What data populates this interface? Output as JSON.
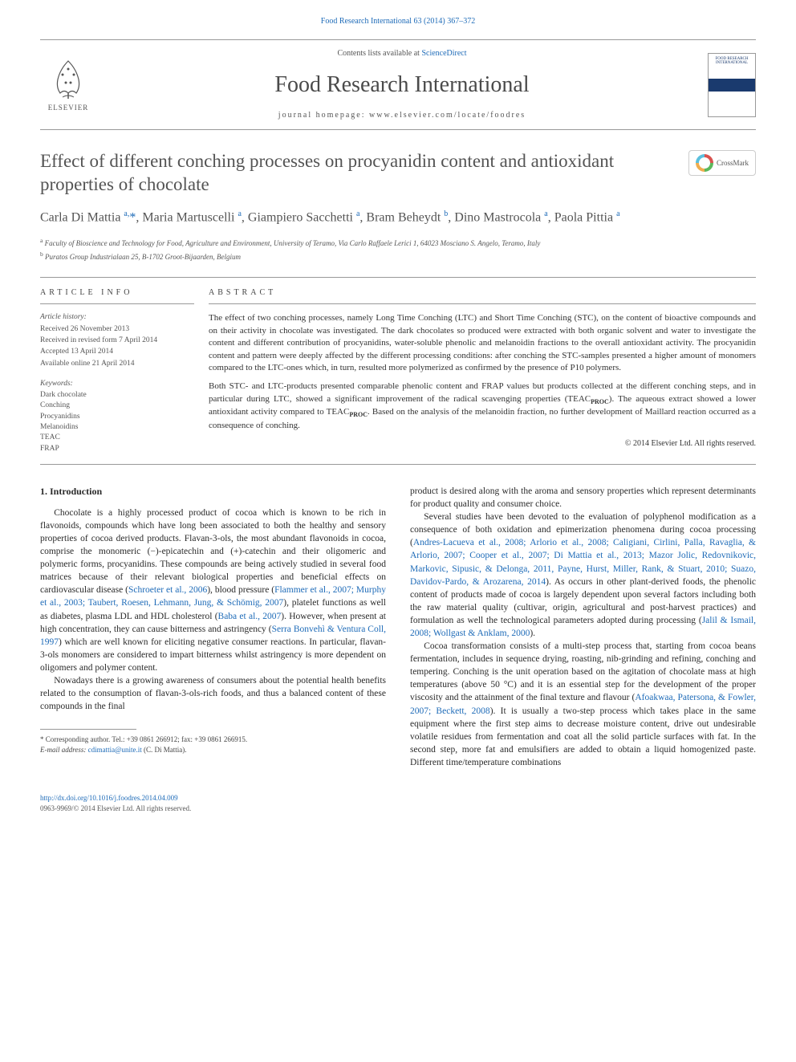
{
  "top_link": "Food Research International 63 (2014) 367–372",
  "header": {
    "contents_prefix": "Contents lists available at ",
    "contents_link": "ScienceDirect",
    "journal_name": "Food Research International",
    "homepage_label": "journal homepage: ",
    "homepage_url": "www.elsevier.com/locate/foodres",
    "elsevier_label": "ELSEVIER",
    "cover_label": "FOOD RESEARCH INTERNATIONAL"
  },
  "crossmark_label": "CrossMark",
  "title": "Effect of different conching processes on procyanidin content and antioxidant properties of chocolate",
  "authors_html": "Carla Di Mattia <sup>a,</sup><span class='ast'>*</span>, Maria Martuscelli <sup>a</sup>, Giampiero Sacchetti <sup>a</sup>, Bram Beheydt <sup>b</sup>, Dino Mastrocola <sup>a</sup>, Paola Pittia <sup>a</sup>",
  "affiliations": {
    "a": "Faculty of Bioscience and Technology for Food, Agriculture and Environment, University of Teramo, Via Carlo Raffaele Lerici 1, 64023 Mosciano S. Angelo, Teramo, Italy",
    "b": "Puratos Group Industrialaan 25, B-1702 Groot-Bijaarden, Belgium"
  },
  "article_info": {
    "heading": "ARTICLE INFO",
    "history_label": "Article history:",
    "history": [
      "Received 26 November 2013",
      "Received in revised form 7 April 2014",
      "Accepted 13 April 2014",
      "Available online 21 April 2014"
    ],
    "keywords_label": "Keywords:",
    "keywords": [
      "Dark chocolate",
      "Conching",
      "Procyanidins",
      "Melanoidins",
      "TEAC",
      "FRAP"
    ]
  },
  "abstract": {
    "heading": "ABSTRACT",
    "p1": "The effect of two conching processes, namely Long Time Conching (LTC) and Short Time Conching (STC), on the content of bioactive compounds and on their activity in chocolate was investigated. The dark chocolates so produced were extracted with both organic solvent and water to investigate the content and different contribution of procyanidins, water-soluble phenolic and melanoidin fractions to the overall antioxidant activity. The procyanidin content and pattern were deeply affected by the different processing conditions: after conching the STC-samples presented a higher amount of monomers compared to the LTC-ones which, in turn, resulted more polymerized as confirmed by the presence of P10 polymers.",
    "p2_pre": "Both STC- and LTC-products presented comparable phenolic content and FRAP values but products collected at the different conching steps, and in particular during LTC, showed a significant improvement of the radical scavenging properties (TEAC",
    "p2_mid1": "). The aqueous extract showed a lower antioxidant activity compared to TEAC",
    "p2_post": ". Based on the analysis of the melanoidin fraction, no further development of Maillard reaction occurred as a consequence of conching.",
    "copyright": "© 2014 Elsevier Ltd. All rights reserved."
  },
  "section_heading": "1. Introduction",
  "col1": {
    "p1_a": "Chocolate is a highly processed product of cocoa which is known to be rich in flavonoids, compounds which have long been associated to both the healthy and sensory properties of cocoa derived products. Flavan-3-ols, the most abundant flavonoids in cocoa, comprise the monomeric (−)-epicatechin and (+)-catechin and their oligomeric and polymeric forms, procyanidins. These compounds are being actively studied in several food matrices because of their relevant biological properties and beneficial effects on cardiovascular disease (",
    "c1": "Schroeter et al., 2006",
    "p1_b": "), blood pressure (",
    "c2": "Flammer et al., 2007; Murphy et al., 2003; Taubert, Roesen, Lehmann, Jung, & Schömig, 2007",
    "p1_c": "), platelet functions as well as diabetes, plasma LDL and HDL cholesterol (",
    "c3": "Baba et al., 2007",
    "p1_d": "). However, when present at high concentration, they can cause bitterness and astringency (",
    "c4": "Serra Bonvehì & Ventura Coll, 1997",
    "p1_e": ") which are well known for eliciting negative consumer reactions. In particular, flavan-3-ols monomers are considered to impart bitterness whilst astringency is more dependent on oligomers and polymer content.",
    "p2": "Nowadays there is a growing awareness of consumers about the potential health benefits related to the consumption of flavan-3-ols-rich foods, and thus a balanced content of these compounds in the final"
  },
  "col2": {
    "p0": "product is desired along with the aroma and sensory properties which represent determinants for product quality and consumer choice.",
    "p1_a": "Several studies have been devoted to the evaluation of polyphenol modification as a consequence of both oxidation and epimerization phenomena during cocoa processing (",
    "c1": "Andres-Lacueva et al., 2008; Arlorio et al., 2008; Caligiani, Cirlini, Palla, Ravaglia, & Arlorio, 2007; Cooper et al., 2007; Di Mattia et al., 2013; Mazor Jolic, Redovnikovic, Markovic, Sipusic, & Delonga, 2011, Payne, Hurst, Miller, Rank, & Stuart, 2010; Suazo, Davidov-Pardo, & Arozarena, 2014",
    "p1_b": "). As occurs in other plant-derived foods, the phenolic content of products made of cocoa is largely dependent upon several factors including both the raw material quality (cultivar, origin, agricultural and post-harvest practices) and formulation as well the technological parameters adopted during processing (",
    "c2": "Jalil & Ismail, 2008; Wollgast & Anklam, 2000",
    "p1_c": ").",
    "p2_a": "Cocoa transformation consists of a multi-step process that, starting from cocoa beans fermentation, includes in sequence drying, roasting, nib-grinding and refining, conching and tempering. Conching is the unit operation based on the agitation of chocolate mass at high temperatures (above 50 °C) and it is an essential step for the development of the proper viscosity and the attainment of the final texture and flavour (",
    "c3": "Afoakwaa, Patersona, & Fowler, 2007; Beckett, 2008",
    "p2_b": "). It is usually a two-step process which takes place in the same equipment where the first step aims to decrease moisture content, drive out undesirable volatile residues from fermentation and coat all the solid particle surfaces with fat. In the second step, more fat and emulsifiers are added to obtain a liquid homogenized paste. Different time/temperature combinations"
  },
  "footnote": {
    "corr": "* Corresponding author. Tel.: +39 0861 266912; fax: +39 0861 266915.",
    "email_label": "E-mail address: ",
    "email": "cdimattia@unite.it",
    "email_suffix": " (C. Di Mattia)."
  },
  "footer": {
    "doi": "http://dx.doi.org/10.1016/j.foodres.2014.04.009",
    "issn_copy": "0963-9969/© 2014 Elsevier Ltd. All rights reserved."
  },
  "colors": {
    "link": "#1e6bb8",
    "text": "#333333",
    "heading": "#545454",
    "rule": "#999999"
  }
}
